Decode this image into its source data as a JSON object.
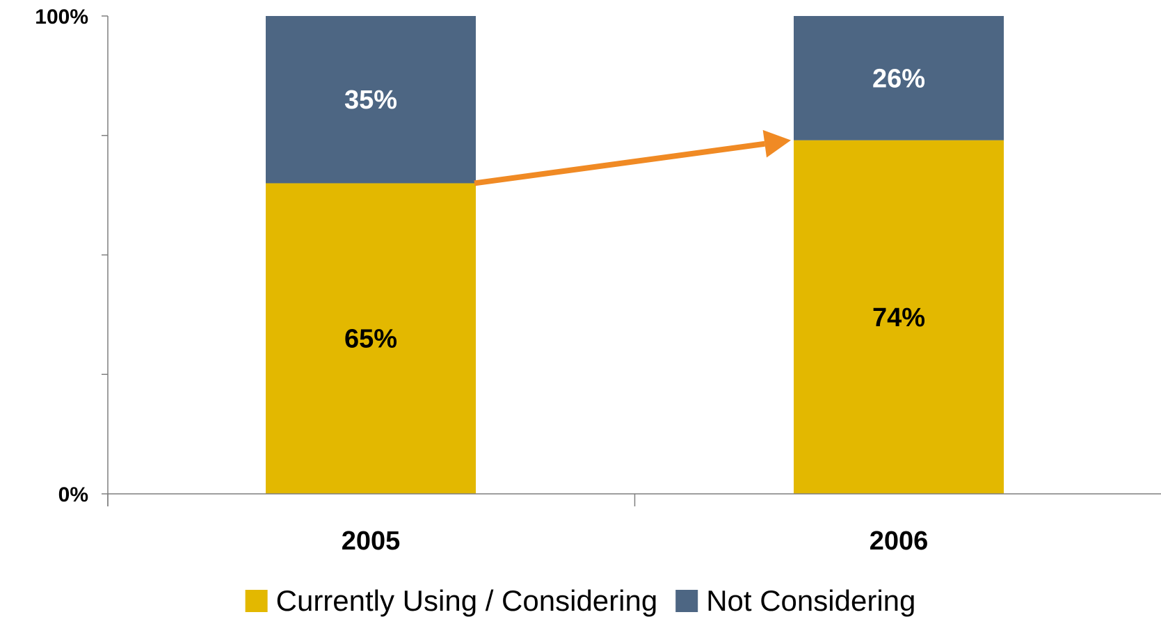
{
  "chart_data": {
    "type": "bar",
    "stacked": true,
    "categories": [
      "2005",
      "2006"
    ],
    "series": [
      {
        "name": "Currently Using / Considering",
        "values": [
          65,
          74
        ],
        "labels": [
          "65%",
          "74%"
        ],
        "color": "#E3B800",
        "label_color": "#000000"
      },
      {
        "name": "Not Considering",
        "values": [
          35,
          26
        ],
        "labels": [
          "35%",
          "26%"
        ],
        "color": "#4D6683",
        "label_color": "#FFFFFF"
      }
    ],
    "ylim": [
      0,
      100
    ],
    "y_tick_labels": [
      "0%",
      "100%"
    ],
    "y_tick_values": [
      0,
      100
    ],
    "grid": false,
    "legend_position": "bottom",
    "annotation": {
      "type": "arrow",
      "from": "top of 2005 Currently Using / Considering",
      "to": "top of 2006 Currently Using / Considering",
      "color": "#F08A24"
    }
  }
}
